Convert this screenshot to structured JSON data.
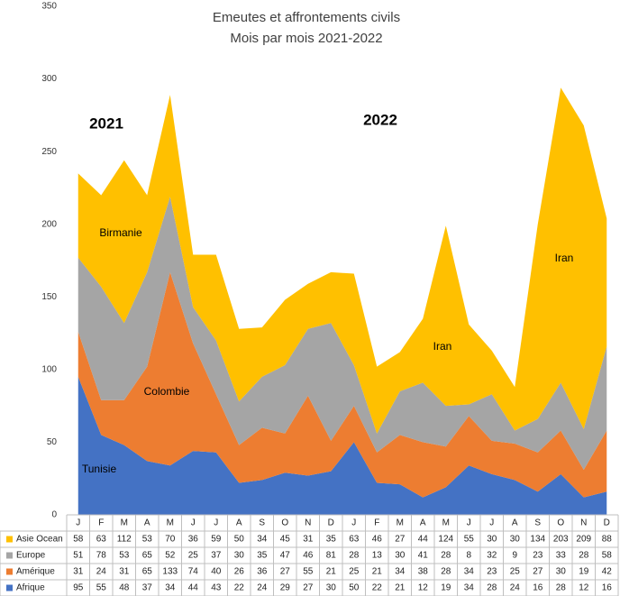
{
  "chart_data": {
    "type": "stacked-area",
    "title": "Emeutes et affrontements civils",
    "subtitle": "Mois par mois 2021-2022",
    "categories": [
      "J",
      "F",
      "M",
      "A",
      "M",
      "J",
      "J",
      "A",
      "S",
      "O",
      "N",
      "D",
      "J",
      "F",
      "M",
      "A",
      "M",
      "J",
      "J",
      "A",
      "S",
      "O",
      "N",
      "D"
    ],
    "series": [
      {
        "name": "Afrique",
        "color": "#4472c4",
        "values": [
          95,
          55,
          48,
          37,
          34,
          44,
          43,
          22,
          24,
          29,
          27,
          30,
          50,
          22,
          21,
          12,
          19,
          34,
          28,
          24,
          16,
          28,
          12,
          16
        ]
      },
      {
        "name": "Amérique",
        "color": "#ed7d31",
        "values": [
          31,
          24,
          31,
          65,
          133,
          74,
          40,
          26,
          36,
          27,
          55,
          21,
          25,
          21,
          34,
          38,
          28,
          34,
          23,
          25,
          27,
          30,
          19,
          42
        ]
      },
      {
        "name": "Europe",
        "color": "#a5a5a5",
        "values": [
          51,
          78,
          53,
          65,
          52,
          25,
          37,
          30,
          35,
          47,
          46,
          81,
          28,
          13,
          30,
          41,
          28,
          8,
          32,
          9,
          23,
          33,
          28,
          58
        ]
      },
      {
        "name": "Asie Ocean",
        "color": "#ffc000",
        "values": [
          58,
          63,
          112,
          53,
          70,
          36,
          59,
          50,
          34,
          45,
          31,
          35,
          63,
          46,
          27,
          44,
          124,
          55,
          30,
          30,
          134,
          203,
          209,
          88
        ]
      }
    ],
    "ylim": [
      0,
      350
    ],
    "yticks": [
      0,
      50,
      100,
      150,
      200,
      250,
      300,
      350
    ],
    "grid": false,
    "annotations": [
      "2021",
      "2022",
      "Birmanie",
      "Colombie",
      "Tunisie",
      "Iran",
      "Iran"
    ]
  }
}
